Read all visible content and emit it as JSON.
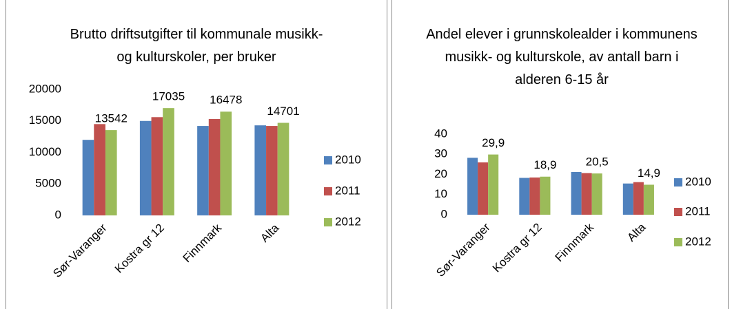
{
  "chart_data": [
    {
      "type": "bar",
      "title": "Brutto driftsutgifter til kommunale musikk- og kulturskoler, per bruker",
      "categories": [
        "Sør-Varanger",
        "Kostra gr 12",
        "Finnmark",
        "Alta"
      ],
      "series": [
        {
          "name": "2010",
          "color": "#4f81bd",
          "values": [
            12000,
            15000,
            14200,
            14300
          ]
        },
        {
          "name": "2011",
          "color": "#c0504d",
          "values": [
            14500,
            15600,
            15300,
            14200
          ]
        },
        {
          "name": "2012",
          "color": "#9bbb59",
          "values": [
            13542,
            17035,
            16478,
            14701
          ],
          "show_labels": true
        }
      ],
      "ylim": [
        0,
        20000
      ],
      "yticks": [
        0,
        5000,
        10000,
        15000,
        20000
      ],
      "grid": false,
      "legend": "right"
    },
    {
      "type": "bar",
      "title": "Andel elever i grunnskolealder i kommunens musikk- og kulturskole, av antall barn i alderen 6-15 år",
      "categories": [
        "Sør-Varanger",
        "Kostra gr 12",
        "Finnmark",
        "Alta"
      ],
      "series": [
        {
          "name": "2010",
          "color": "#4f81bd",
          "values": [
            28.3,
            18.3,
            21.2,
            15.5
          ]
        },
        {
          "name": "2011",
          "color": "#c0504d",
          "values": [
            26,
            18.5,
            20.7,
            16.2
          ]
        },
        {
          "name": "2012",
          "color": "#9bbb59",
          "values": [
            29.9,
            18.9,
            20.5,
            14.9
          ],
          "value_labels": [
            "29,9",
            "18,9",
            "20,5",
            "14,9"
          ]
        }
      ],
      "ylim": [
        0,
        40
      ],
      "yticks": [
        0,
        10,
        20,
        30,
        40
      ],
      "grid": false,
      "legend": "right"
    }
  ]
}
